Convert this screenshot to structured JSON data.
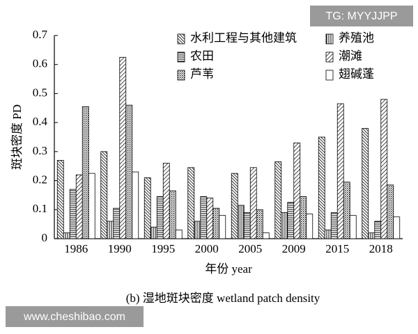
{
  "chart_data": {
    "type": "bar",
    "title": "(b) 湿地斑块密度 wetland patch density",
    "x_label": "年份 year",
    "y_label": "斑块密度 PD",
    "watermarks": [
      "TG: MYYJJPP",
      "www.cheshibao.com"
    ],
    "categories": [
      "1986",
      "1990",
      "1995",
      "2000",
      "2005",
      "2009",
      "2015",
      "2018"
    ],
    "series": [
      {
        "name": "水利工程与其他建筑",
        "color": "#000000",
        "pattern": "dense-diagonal",
        "values": [
          0.27,
          0.3,
          0.21,
          0.245,
          0.225,
          0.265,
          0.35,
          0.38
        ]
      },
      {
        "name": "养殖池",
        "color": "#000000",
        "pattern": "vertical",
        "values": [
          0.02,
          0.06,
          0.04,
          0.06,
          0.115,
          0.09,
          0.03,
          0.02
        ]
      },
      {
        "name": "农田",
        "color": "#000000",
        "pattern": "horizontal",
        "values": [
          0.17,
          0.105,
          0.145,
          0.145,
          0.09,
          0.125,
          0.09,
          0.06
        ]
      },
      {
        "name": "潮滩",
        "color": "#000000",
        "pattern": "diagonal",
        "values": [
          0.22,
          0.625,
          0.26,
          0.14,
          0.245,
          0.33,
          0.465,
          0.48
        ]
      },
      {
        "name": "芦苇",
        "color": "#000000",
        "pattern": "dots",
        "values": [
          0.455,
          0.46,
          0.165,
          0.105,
          0.1,
          0.145,
          0.195,
          0.185
        ]
      },
      {
        "name": "翅碱蓬",
        "color": "#000000",
        "pattern": "none",
        "values": [
          0.225,
          0.23,
          0.03,
          0.08,
          0.02,
          0.085,
          0.08,
          0.075
        ]
      }
    ],
    "ylim": [
      0,
      0.7
    ],
    "yticks": [
      0,
      0.1,
      0.2,
      0.3,
      0.4,
      0.5,
      0.6,
      0.7
    ],
    "grid": false,
    "legend": "top-right"
  }
}
